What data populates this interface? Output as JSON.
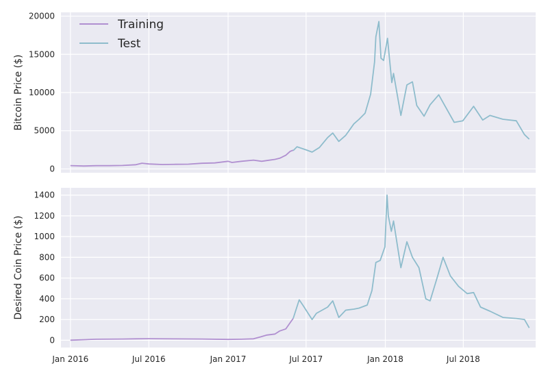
{
  "chart_data": [
    {
      "type": "line",
      "ylabel": "Bitcoin Price ($)",
      "ylim": [
        -500,
        20500
      ],
      "yticks": [
        0,
        5000,
        10000,
        15000,
        20000
      ],
      "ytick_labels": [
        "0",
        "5000",
        "10000",
        "15000",
        "20000"
      ],
      "grid": true,
      "legend": "top-left",
      "series": [
        {
          "name": "Training",
          "color": "#b08fd0",
          "x": [
            "2016-01-01",
            "2016-02-01",
            "2016-03-01",
            "2016-04-01",
            "2016-05-01",
            "2016-06-01",
            "2016-06-15",
            "2016-07-01",
            "2016-08-01",
            "2016-09-01",
            "2016-10-01",
            "2016-11-01",
            "2016-12-01",
            "2017-01-01",
            "2017-01-10",
            "2017-02-01",
            "2017-03-01",
            "2017-03-20",
            "2017-04-01",
            "2017-04-20",
            "2017-05-01",
            "2017-05-15",
            "2017-05-25",
            "2017-06-01"
          ],
          "y": [
            430,
            380,
            420,
            420,
            450,
            550,
            750,
            650,
            580,
            600,
            620,
            740,
            780,
            1000,
            850,
            1000,
            1150,
            1000,
            1100,
            1250,
            1400,
            1800,
            2300,
            2450
          ]
        },
        {
          "name": "Test",
          "color": "#8ebccc",
          "x": [
            "2017-06-01",
            "2017-06-10",
            "2017-07-01",
            "2017-07-15",
            "2017-08-01",
            "2017-08-20",
            "2017-09-01",
            "2017-09-15",
            "2017-10-01",
            "2017-10-20",
            "2017-11-01",
            "2017-11-15",
            "2017-11-28",
            "2017-12-07",
            "2017-12-10",
            "2017-12-17",
            "2017-12-22",
            "2017-12-28",
            "2018-01-06",
            "2018-01-16",
            "2018-01-20",
            "2018-02-06",
            "2018-02-20",
            "2018-03-05",
            "2018-03-15",
            "2018-04-01",
            "2018-04-15",
            "2018-05-05",
            "2018-05-20",
            "2018-06-10",
            "2018-06-30",
            "2018-07-25",
            "2018-08-15",
            "2018-09-01",
            "2018-10-01",
            "2018-11-01",
            "2018-11-20",
            "2018-12-01"
          ],
          "y": [
            2400,
            2900,
            2500,
            2200,
            2800,
            4100,
            4700,
            3600,
            4400,
            5900,
            6500,
            7300,
            9800,
            14000,
            17300,
            19300,
            14500,
            14200,
            17100,
            11300,
            12500,
            7000,
            11000,
            11400,
            8300,
            6900,
            8400,
            9700,
            8200,
            6100,
            6300,
            8200,
            6400,
            7000,
            6500,
            6300,
            4500,
            3900
          ]
        }
      ]
    },
    {
      "type": "line",
      "xlabel": "",
      "ylabel": "Desired Coin Price ($)",
      "ylim": [
        -70,
        1470
      ],
      "yticks": [
        0,
        200,
        400,
        600,
        800,
        1000,
        1200,
        1400
      ],
      "ytick_labels": [
        "0",
        "200",
        "400",
        "600",
        "800",
        "1000",
        "1200",
        "1400"
      ],
      "xtick_labels": [
        "Jan 2016",
        "Jul 2016",
        "Jan 2017",
        "Jul 2017",
        "Jan 2018",
        "Jul 2018"
      ],
      "grid": true,
      "series": [
        {
          "name": "Training",
          "color": "#b08fd0",
          "x": [
            "2016-01-01",
            "2016-03-01",
            "2016-05-01",
            "2016-06-01",
            "2016-07-01",
            "2016-09-01",
            "2016-11-01",
            "2017-01-01",
            "2017-02-01",
            "2017-03-01",
            "2017-03-15",
            "2017-04-01",
            "2017-04-20",
            "2017-05-01",
            "2017-05-15",
            "2017-05-25",
            "2017-06-01"
          ],
          "y": [
            1,
            10,
            12,
            14,
            15,
            13,
            12,
            8,
            10,
            14,
            30,
            50,
            60,
            90,
            110,
            170,
            210
          ]
        },
        {
          "name": "Test",
          "color": "#8ebccc",
          "x": [
            "2017-06-01",
            "2017-06-15",
            "2017-06-25",
            "2017-07-15",
            "2017-07-25",
            "2017-08-20",
            "2017-09-01",
            "2017-09-15",
            "2017-10-01",
            "2017-10-20",
            "2017-11-01",
            "2017-11-20",
            "2017-12-01",
            "2017-12-10",
            "2017-12-20",
            "2017-12-31",
            "2018-01-05",
            "2018-01-08",
            "2018-01-15",
            "2018-01-20",
            "2018-02-06",
            "2018-02-20",
            "2018-03-05",
            "2018-03-20",
            "2018-04-05",
            "2018-04-15",
            "2018-05-01",
            "2018-05-15",
            "2018-06-01",
            "2018-06-20",
            "2018-07-10",
            "2018-07-25",
            "2018-08-10",
            "2018-09-01",
            "2018-10-01",
            "2018-11-01",
            "2018-11-20",
            "2018-12-01"
          ],
          "y": [
            210,
            390,
            330,
            200,
            260,
            320,
            380,
            220,
            290,
            300,
            310,
            340,
            480,
            750,
            770,
            900,
            1400,
            1200,
            1050,
            1150,
            700,
            950,
            800,
            700,
            400,
            380,
            600,
            800,
            620,
            520,
            450,
            460,
            320,
            280,
            220,
            210,
            200,
            120
          ]
        }
      ]
    }
  ]
}
